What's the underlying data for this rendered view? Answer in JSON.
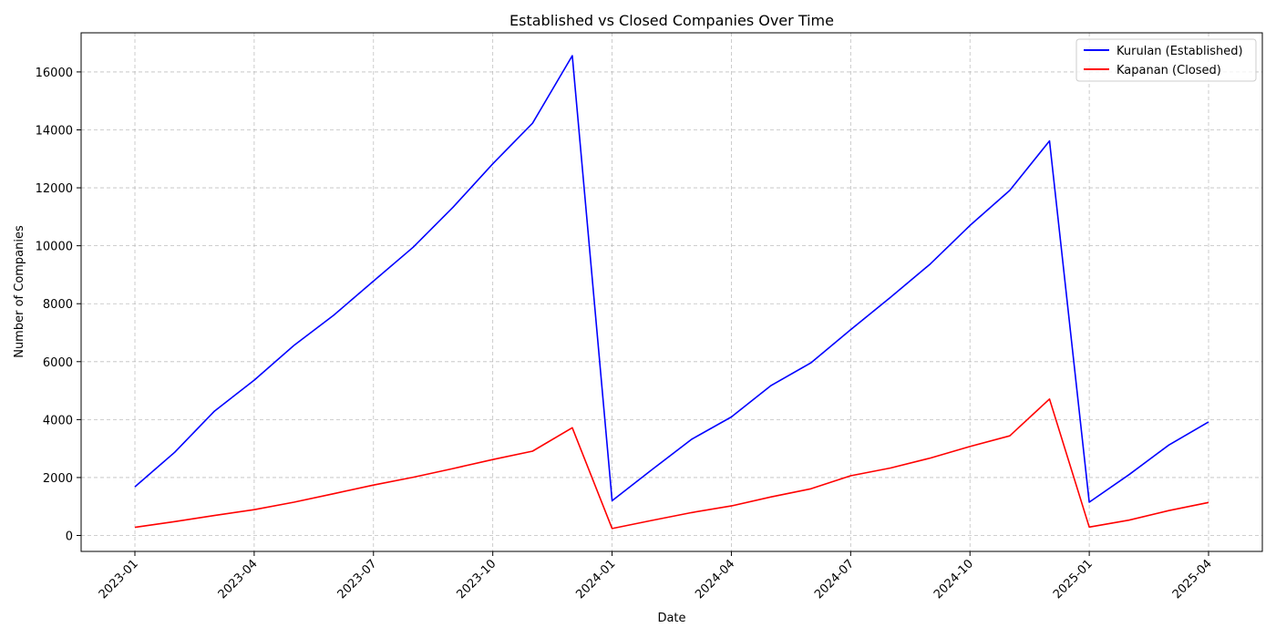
{
  "chart_data": {
    "type": "line",
    "title": "Established vs Closed Companies Over Time",
    "xlabel": "Date",
    "ylabel": "Number of Companies",
    "x": [
      "2023-01",
      "2023-02",
      "2023-03",
      "2023-04",
      "2023-05",
      "2023-06",
      "2023-07",
      "2023-08",
      "2023-09",
      "2023-10",
      "2023-11",
      "2023-12",
      "2024-01",
      "2024-02",
      "2024-03",
      "2024-04",
      "2024-05",
      "2024-06",
      "2024-07",
      "2024-08",
      "2024-09",
      "2024-10",
      "2024-11",
      "2024-12",
      "2025-01",
      "2025-02",
      "2025-03",
      "2025-04"
    ],
    "x_ticks": [
      "2023-01",
      "2023-04",
      "2023-07",
      "2023-10",
      "2024-01",
      "2024-04",
      "2024-07",
      "2024-10",
      "2025-01",
      "2025-04"
    ],
    "y_ticks": [
      0,
      2000,
      4000,
      6000,
      8000,
      10000,
      12000,
      14000,
      16000
    ],
    "ylim": [
      -550,
      17350
    ],
    "grid": true,
    "legend_position": "top-right",
    "series": [
      {
        "name": "Kurulan (Established)",
        "color": "#0000ff",
        "values": [
          1680,
          2870,
          4290,
          5360,
          6560,
          7600,
          8780,
          9950,
          11330,
          12830,
          14230,
          16560,
          1200,
          2270,
          3320,
          4090,
          5180,
          5960,
          7100,
          8220,
          9370,
          10700,
          11910,
          13620,
          1150,
          2100,
          3120,
          3920
        ]
      },
      {
        "name": "Kapanan (Closed)",
        "color": "#ff0000",
        "values": [
          280,
          480,
          690,
          890,
          1150,
          1440,
          1740,
          2010,
          2310,
          2620,
          2910,
          3720,
          240,
          520,
          790,
          1020,
          1330,
          1610,
          2060,
          2330,
          2670,
          3070,
          3440,
          4710,
          290,
          530,
          860,
          1140
        ]
      }
    ]
  }
}
